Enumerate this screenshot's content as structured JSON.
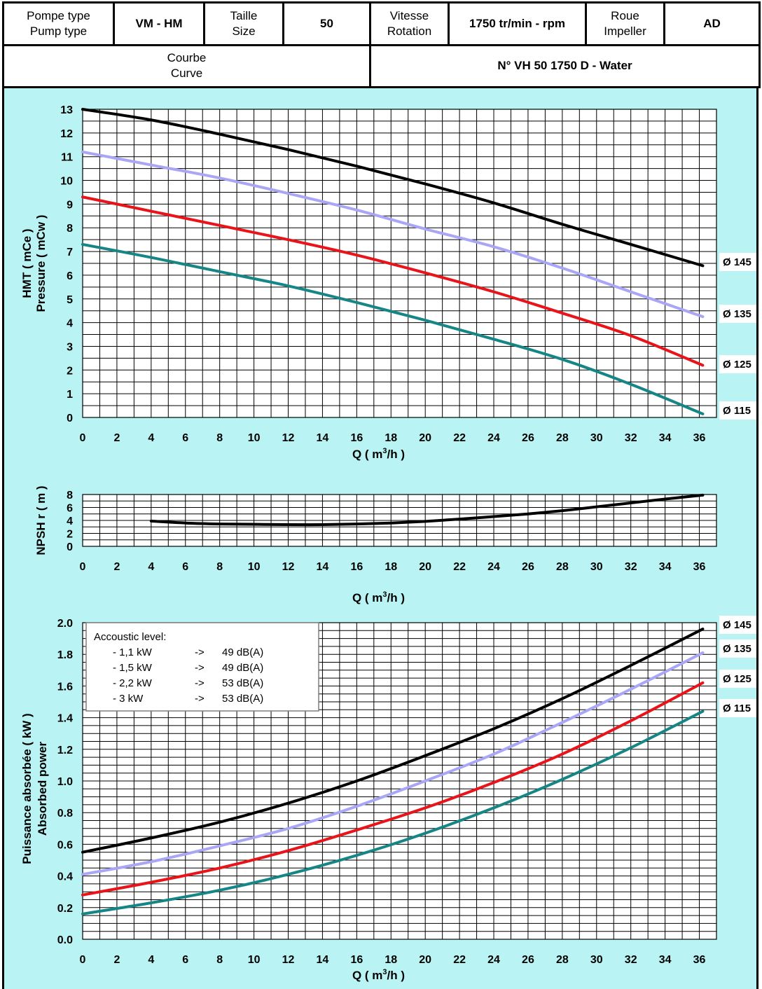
{
  "header": {
    "pump_type_label": [
      "Pompe type",
      "Pump type"
    ],
    "pump_type_value": "VM - HM",
    "size_label": [
      "Taille",
      "Size"
    ],
    "size_value": "50",
    "speed_label": [
      "Vitesse",
      "Rotation"
    ],
    "speed_value": "1750 tr/min - rpm",
    "impeller_label": [
      "Roue",
      "Impeller"
    ],
    "impeller_value": "AD",
    "curve_label": [
      "Courbe",
      "Curve"
    ],
    "curve_value": "N° VH 50 1750 D - Water"
  },
  "colors": {
    "background": "#b9f3f3",
    "d145": "#000000",
    "d135": "#a8a6f5",
    "d125": "#e8141a",
    "d115": "#158585"
  },
  "acoustic": {
    "title": "Accoustic level:",
    "rows": [
      {
        "power": "- 1,1 kW",
        "arrow": "->",
        "level": "49 dB(A)"
      },
      {
        "power": "- 1,5 kW",
        "arrow": "->",
        "level": "49 dB(A)"
      },
      {
        "power": "- 2,2 kW",
        "arrow": "->",
        "level": "53 dB(A)"
      },
      {
        "power": "- 3 kW",
        "arrow": "->",
        "level": "53 dB(A)"
      }
    ]
  },
  "chart_data": [
    {
      "type": "line",
      "xlabel": "Q ( m³/h )",
      "ylabel": [
        "HMT ( mCe )",
        "Pressure ( mCw )"
      ],
      "xlim": [
        0,
        37
      ],
      "ylim": [
        0,
        13
      ],
      "xticks": [
        0,
        2,
        4,
        6,
        8,
        10,
        12,
        14,
        16,
        18,
        20,
        22,
        24,
        26,
        28,
        30,
        32,
        34,
        36
      ],
      "yticks": [
        0,
        1,
        2,
        3,
        4,
        5,
        6,
        7,
        8,
        9,
        10,
        11,
        12,
        13
      ],
      "grid": true,
      "series": [
        {
          "name": "Ø 145",
          "color": "#000000",
          "x": [
            0,
            4,
            8,
            12,
            16,
            20,
            24,
            28,
            32,
            36.2
          ],
          "y": [
            13,
            12.55,
            11.95,
            11.3,
            10.6,
            9.85,
            9.05,
            8.15,
            7.3,
            6.4
          ]
        },
        {
          "name": "Ø 135",
          "color": "#a8a6f5",
          "x": [
            0,
            4,
            8,
            12,
            16,
            20,
            24,
            28,
            32,
            36.2
          ],
          "y": [
            11.2,
            10.65,
            10.1,
            9.45,
            8.75,
            7.95,
            7.2,
            6.3,
            5.3,
            4.25
          ]
        },
        {
          "name": "Ø 125",
          "color": "#e8141a",
          "x": [
            0,
            4,
            8,
            12,
            16,
            20,
            24,
            28,
            32,
            36.2
          ],
          "y": [
            9.3,
            8.7,
            8.1,
            7.5,
            6.85,
            6.1,
            5.3,
            4.4,
            3.45,
            2.2
          ]
        },
        {
          "name": "Ø 115",
          "color": "#158585",
          "x": [
            0,
            4,
            8,
            12,
            16,
            20,
            24,
            28,
            32,
            36.2
          ],
          "y": [
            7.3,
            6.75,
            6.15,
            5.55,
            4.85,
            4.1,
            3.3,
            2.45,
            1.4,
            0.15
          ]
        }
      ]
    },
    {
      "type": "line",
      "xlabel": "Q ( m³/h )",
      "ylabel": "NPSH r ( m )",
      "xlim": [
        0,
        37
      ],
      "ylim": [
        0,
        8
      ],
      "xticks": [
        0,
        2,
        4,
        6,
        8,
        10,
        12,
        14,
        16,
        18,
        20,
        22,
        24,
        26,
        28,
        30,
        32,
        34,
        36
      ],
      "yticks": [
        0,
        2,
        4,
        6,
        8
      ],
      "grid": true,
      "series": [
        {
          "color": "#000000",
          "x": [
            4,
            6,
            8,
            10,
            12,
            14,
            16,
            18,
            20,
            22,
            24,
            26,
            28,
            30,
            32,
            34,
            36.2
          ],
          "y": [
            3.9,
            3.6,
            3.45,
            3.4,
            3.35,
            3.35,
            3.45,
            3.6,
            3.85,
            4.2,
            4.6,
            5.0,
            5.5,
            6.1,
            6.7,
            7.3,
            7.9
          ]
        }
      ]
    },
    {
      "type": "line",
      "xlabel": "Q ( m³/h )",
      "ylabel": [
        "Puissance absorbée ( kW )",
        "Absorbed power"
      ],
      "xlim": [
        0,
        37
      ],
      "ylim": [
        0,
        2.0
      ],
      "xticks": [
        0,
        2,
        4,
        6,
        8,
        10,
        12,
        14,
        16,
        18,
        20,
        22,
        24,
        26,
        28,
        30,
        32,
        34,
        36
      ],
      "yticks": [
        "0.0",
        "0.2",
        "0.4",
        "0.6",
        "0.8",
        "1.0",
        "1.2",
        "1.4",
        "1.6",
        "1.8",
        "2.0"
      ],
      "grid": true,
      "series": [
        {
          "name": "Ø 145",
          "color": "#000000",
          "x": [
            0,
            4,
            8,
            12,
            16,
            20,
            24,
            28,
            32,
            36.2
          ],
          "y": [
            0.55,
            0.64,
            0.74,
            0.86,
            1.0,
            1.16,
            1.33,
            1.52,
            1.73,
            1.96
          ]
        },
        {
          "name": "Ø 135",
          "color": "#a8a6f5",
          "x": [
            0,
            4,
            8,
            12,
            16,
            20,
            24,
            28,
            32,
            36.2
          ],
          "y": [
            0.41,
            0.49,
            0.59,
            0.7,
            0.84,
            1.0,
            1.17,
            1.37,
            1.58,
            1.81
          ]
        },
        {
          "name": "Ø 125",
          "color": "#e8141a",
          "x": [
            0,
            4,
            8,
            12,
            16,
            20,
            24,
            28,
            32,
            36.2
          ],
          "y": [
            0.28,
            0.36,
            0.45,
            0.56,
            0.69,
            0.83,
            0.99,
            1.17,
            1.38,
            1.62
          ]
        },
        {
          "name": "Ø 115",
          "color": "#158585",
          "x": [
            0,
            4,
            8,
            12,
            16,
            20,
            24,
            28,
            32,
            36.2
          ],
          "y": [
            0.16,
            0.23,
            0.31,
            0.41,
            0.53,
            0.67,
            0.83,
            1.01,
            1.21,
            1.44
          ]
        }
      ]
    }
  ]
}
